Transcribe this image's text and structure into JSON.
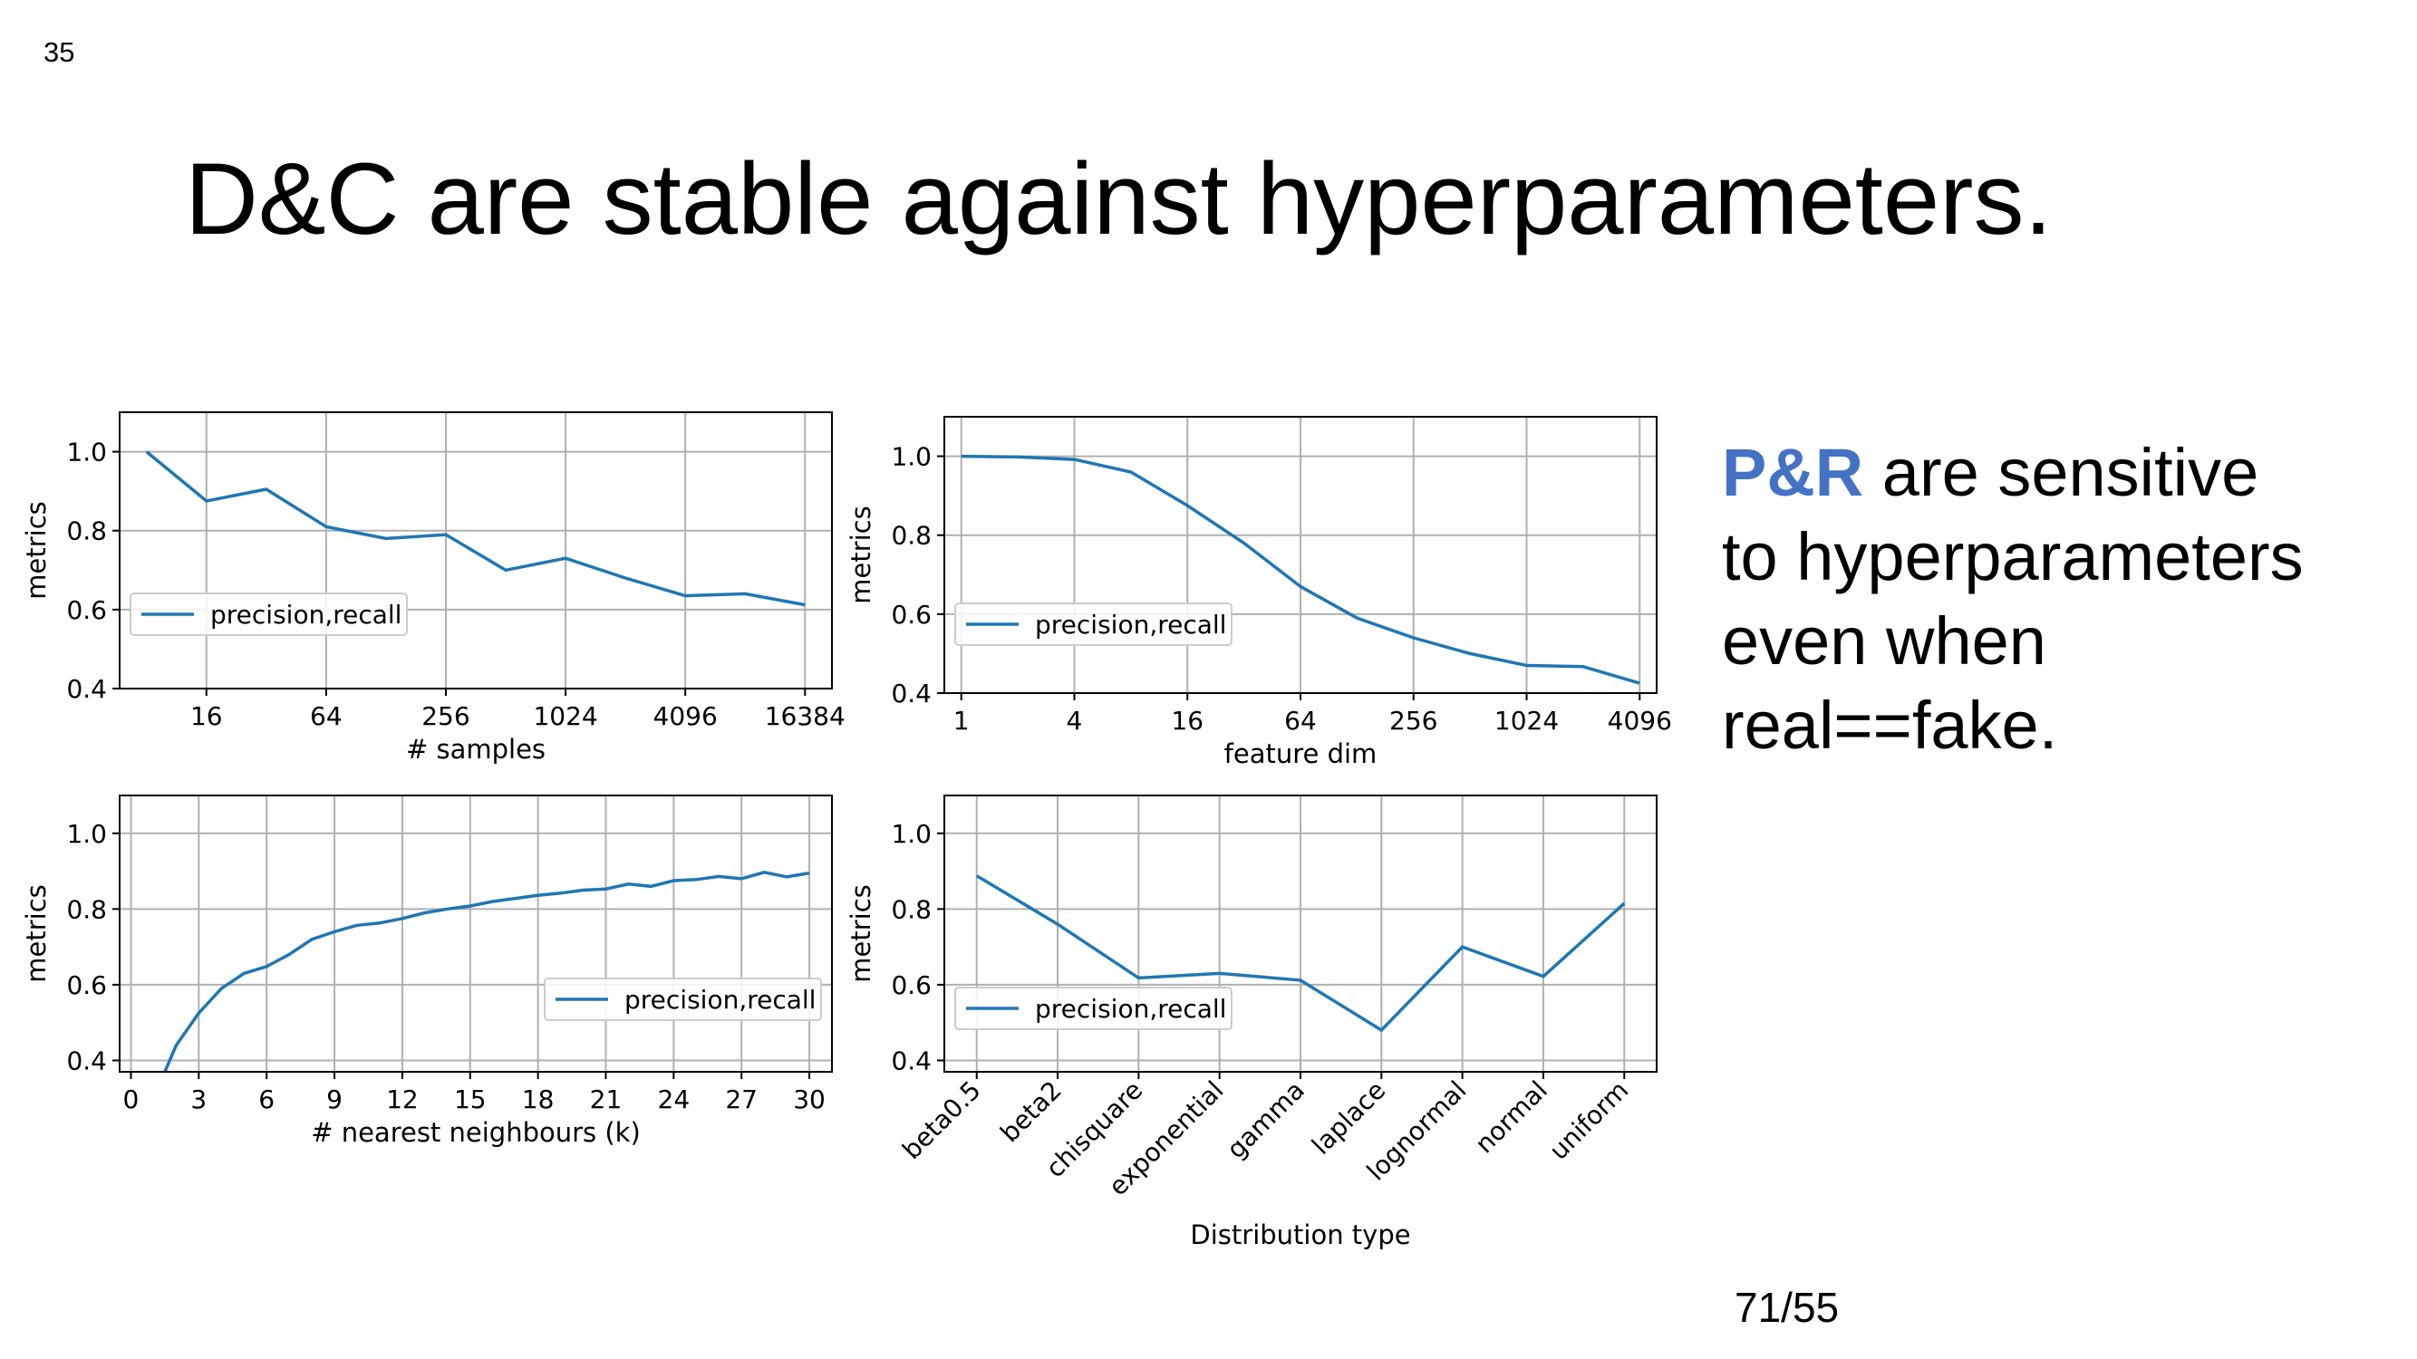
{
  "slide_number": "35",
  "title": "D&C are stable against hyperparameters.",
  "side_note": {
    "accent_text": "P&R",
    "accent_color": "#4472c4",
    "line1_rest": " are sensitive",
    "line2": "to hyperparameters",
    "line3": "even when",
    "line4": "real==fake."
  },
  "page_counter": "71/55",
  "colors": {
    "series": "#1f77b4",
    "grid": "#b0b0b0"
  },
  "chart_data": [
    {
      "type": "line",
      "x_scale": "log2",
      "x": [
        8,
        16,
        32,
        64,
        128,
        256,
        512,
        1024,
        2048,
        4096,
        8192,
        16384
      ],
      "series": [
        {
          "name": "precision,recall",
          "values": [
            1.0,
            0.875,
            0.905,
            0.81,
            0.78,
            0.79,
            0.7,
            0.73,
            0.68,
            0.635,
            0.64,
            0.612
          ]
        }
      ],
      "xticks": [
        16,
        64,
        256,
        1024,
        4096,
        16384
      ],
      "xtick_labels": [
        "16",
        "64",
        "256",
        "1024",
        "4096",
        "16384"
      ],
      "xlabel": "# samples",
      "ylabel": "metrics",
      "ylim": [
        0.4,
        1.1
      ],
      "yticks": [
        0.4,
        0.6,
        0.8,
        1.0
      ],
      "yticklabels": [
        "0.4",
        "0.6",
        "0.8",
        "1.0"
      ],
      "grid": true,
      "legend": "center-left"
    },
    {
      "type": "line",
      "x_scale": "log2",
      "x": [
        1,
        2,
        4,
        8,
        16,
        32,
        64,
        128,
        256,
        512,
        1024,
        2048,
        4096
      ],
      "series": [
        {
          "name": "precision,recall",
          "values": [
            1.0,
            0.998,
            0.992,
            0.96,
            0.875,
            0.78,
            0.67,
            0.59,
            0.54,
            0.5,
            0.47,
            0.467,
            0.425
          ]
        }
      ],
      "xticks": [
        1,
        4,
        16,
        64,
        256,
        1024,
        4096
      ],
      "xtick_labels": [
        "1",
        "4",
        "16",
        "64",
        "256",
        "1024",
        "4096"
      ],
      "xlabel": "feature dim",
      "ylabel": "metrics",
      "ylim": [
        0.4,
        1.1
      ],
      "yticks": [
        0.4,
        0.6,
        0.8,
        1.0
      ],
      "yticklabels": [
        "0.4",
        "0.6",
        "0.8",
        "1.0"
      ],
      "grid": true,
      "legend": "lower-left"
    },
    {
      "type": "line",
      "x_scale": "linear",
      "x": [
        1,
        2,
        3,
        4,
        5,
        6,
        7,
        8,
        9,
        10,
        11,
        12,
        13,
        14,
        15,
        16,
        17,
        18,
        19,
        20,
        21,
        22,
        23,
        24,
        25,
        26,
        27,
        28,
        29,
        30
      ],
      "series": [
        {
          "name": "precision,recall",
          "values": [
            0.3,
            0.44,
            0.525,
            0.59,
            0.63,
            0.648,
            0.68,
            0.72,
            0.74,
            0.757,
            0.763,
            0.775,
            0.79,
            0.8,
            0.808,
            0.82,
            0.828,
            0.836,
            0.842,
            0.85,
            0.853,
            0.866,
            0.86,
            0.875,
            0.878,
            0.886,
            0.88,
            0.897,
            0.885,
            0.895
          ]
        }
      ],
      "xticks": [
        0,
        3,
        6,
        9,
        12,
        15,
        18,
        21,
        24,
        27,
        30
      ],
      "xtick_labels": [
        "0",
        "3",
        "6",
        "9",
        "12",
        "15",
        "18",
        "21",
        "24",
        "27",
        "30"
      ],
      "xlim": [
        -0.5,
        31
      ],
      "xlabel": "# nearest neighbours (k)",
      "ylabel": "metrics",
      "ylim": [
        0.37,
        1.1
      ],
      "yticks": [
        0.4,
        0.6,
        0.8,
        1.0
      ],
      "yticklabels": [
        "0.4",
        "0.6",
        "0.8",
        "1.0"
      ],
      "grid": true,
      "legend": "center-right"
    },
    {
      "type": "line",
      "x_scale": "category",
      "categories": [
        "beta0.5",
        "beta2",
        "chisquare",
        "exponential",
        "gamma",
        "laplace",
        "lognormal",
        "normal",
        "uniform"
      ],
      "series": [
        {
          "name": "precision,recall",
          "values": [
            0.888,
            0.76,
            0.618,
            0.63,
            0.612,
            0.48,
            0.7,
            0.622,
            0.815
          ]
        }
      ],
      "xlabel": "Distribution type",
      "ylabel": "metrics",
      "ylim": [
        0.37,
        1.1
      ],
      "yticks": [
        0.4,
        0.6,
        0.8,
        1.0
      ],
      "yticklabels": [
        "0.4",
        "0.6",
        "0.8",
        "1.0"
      ],
      "grid": true,
      "legend": "center-left"
    }
  ]
}
